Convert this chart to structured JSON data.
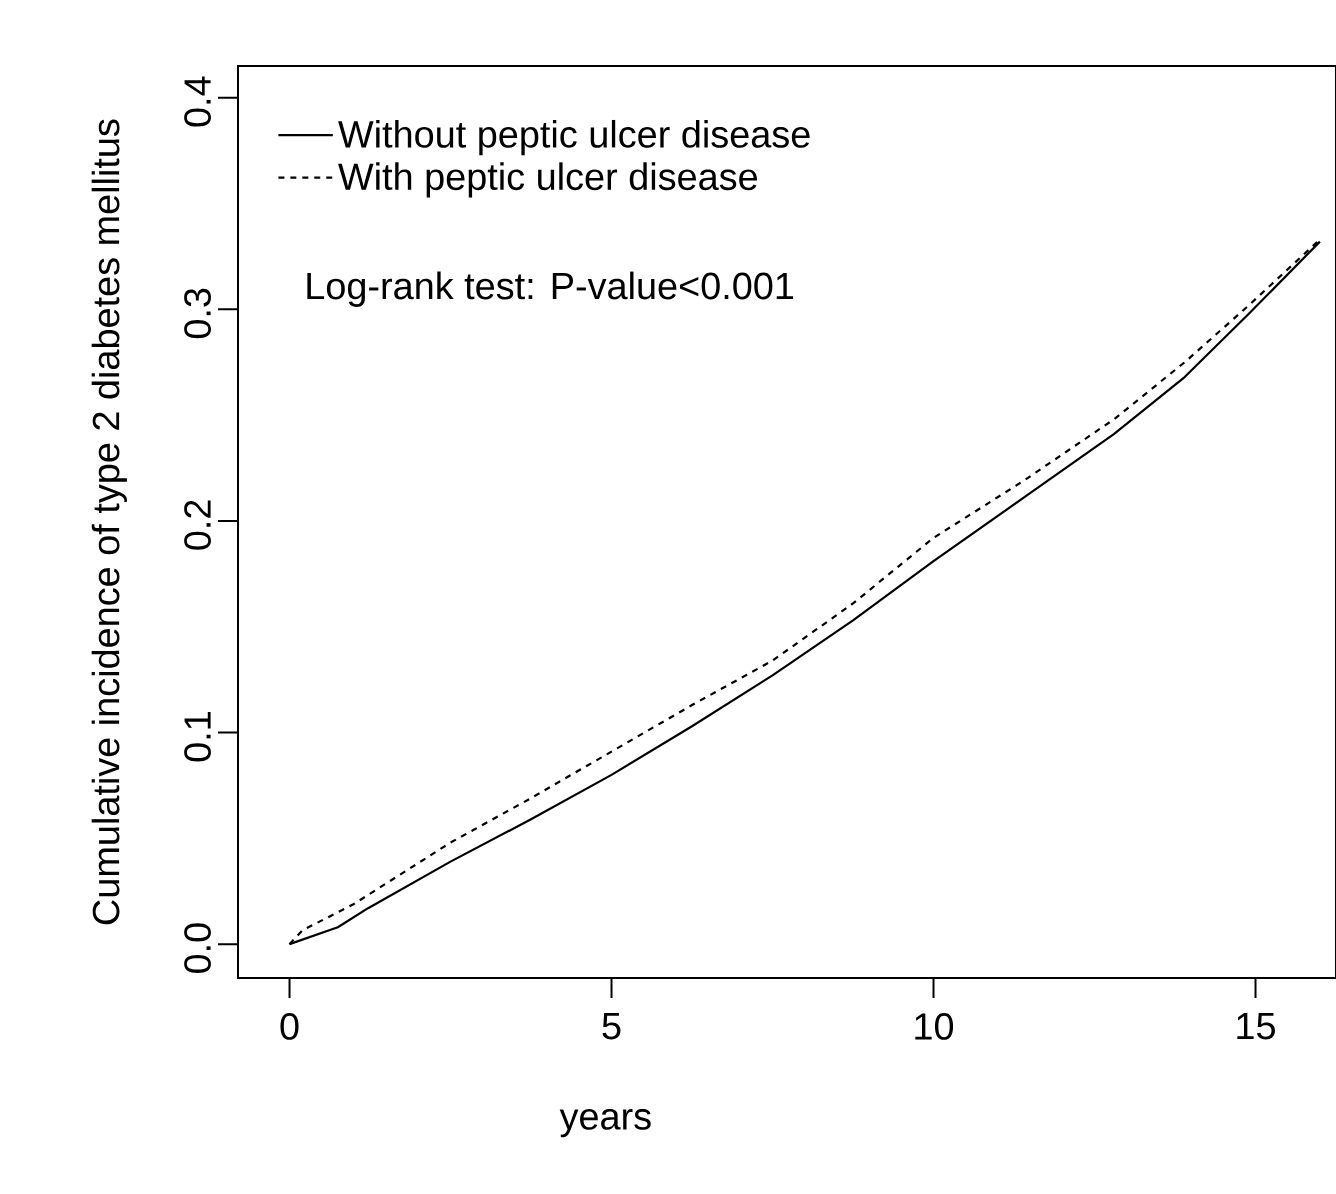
{
  "chart_data": {
    "type": "line",
    "xlabel": "years",
    "ylabel": "Cumulative incidence of type 2 diabetes mellitus",
    "xlim": [
      -0.8,
      16.25
    ],
    "ylim": [
      -0.016,
      0.415
    ],
    "xticks": [
      0,
      5,
      10,
      15
    ],
    "yticks": [
      {
        "value": 0,
        "label": "0.0"
      },
      0.1,
      0.2,
      0.3,
      0.4
    ],
    "grid": false,
    "legend": "top left",
    "marker": "none",
    "series": [
      {
        "name": "Without peptic ulcer disease",
        "color": "#000000",
        "line_style": "solid",
        "x": [
          0,
          0.75,
          1.22,
          2.5,
          3.75,
          5,
          6.25,
          7.5,
          8.75,
          10,
          11.4,
          12.8,
          13.9,
          14.9,
          16
        ],
        "values": [
          0,
          0.008,
          0.017,
          0.039,
          0.059,
          0.08,
          0.103,
          0.127,
          0.153,
          0.181,
          0.211,
          0.241,
          0.268,
          0.298,
          0.332
        ]
      },
      {
        "name": "With peptic ulcer disease",
        "color": "#000000",
        "line_style": "dashed",
        "x": [
          0,
          0.2,
          1,
          2.5,
          3.75,
          5,
          6.25,
          7.5,
          8.75,
          10,
          11.4,
          12.8,
          13.9,
          14.9,
          16
        ],
        "values": [
          0,
          0.0065,
          0.019,
          0.048,
          0.069,
          0.091,
          0.113,
          0.134,
          0.161,
          0.192,
          0.219,
          0.248,
          0.275,
          0.302,
          0.333
        ]
      }
    ],
    "annotations": [
      "Log-rank test: P-value<0.001"
    ]
  }
}
